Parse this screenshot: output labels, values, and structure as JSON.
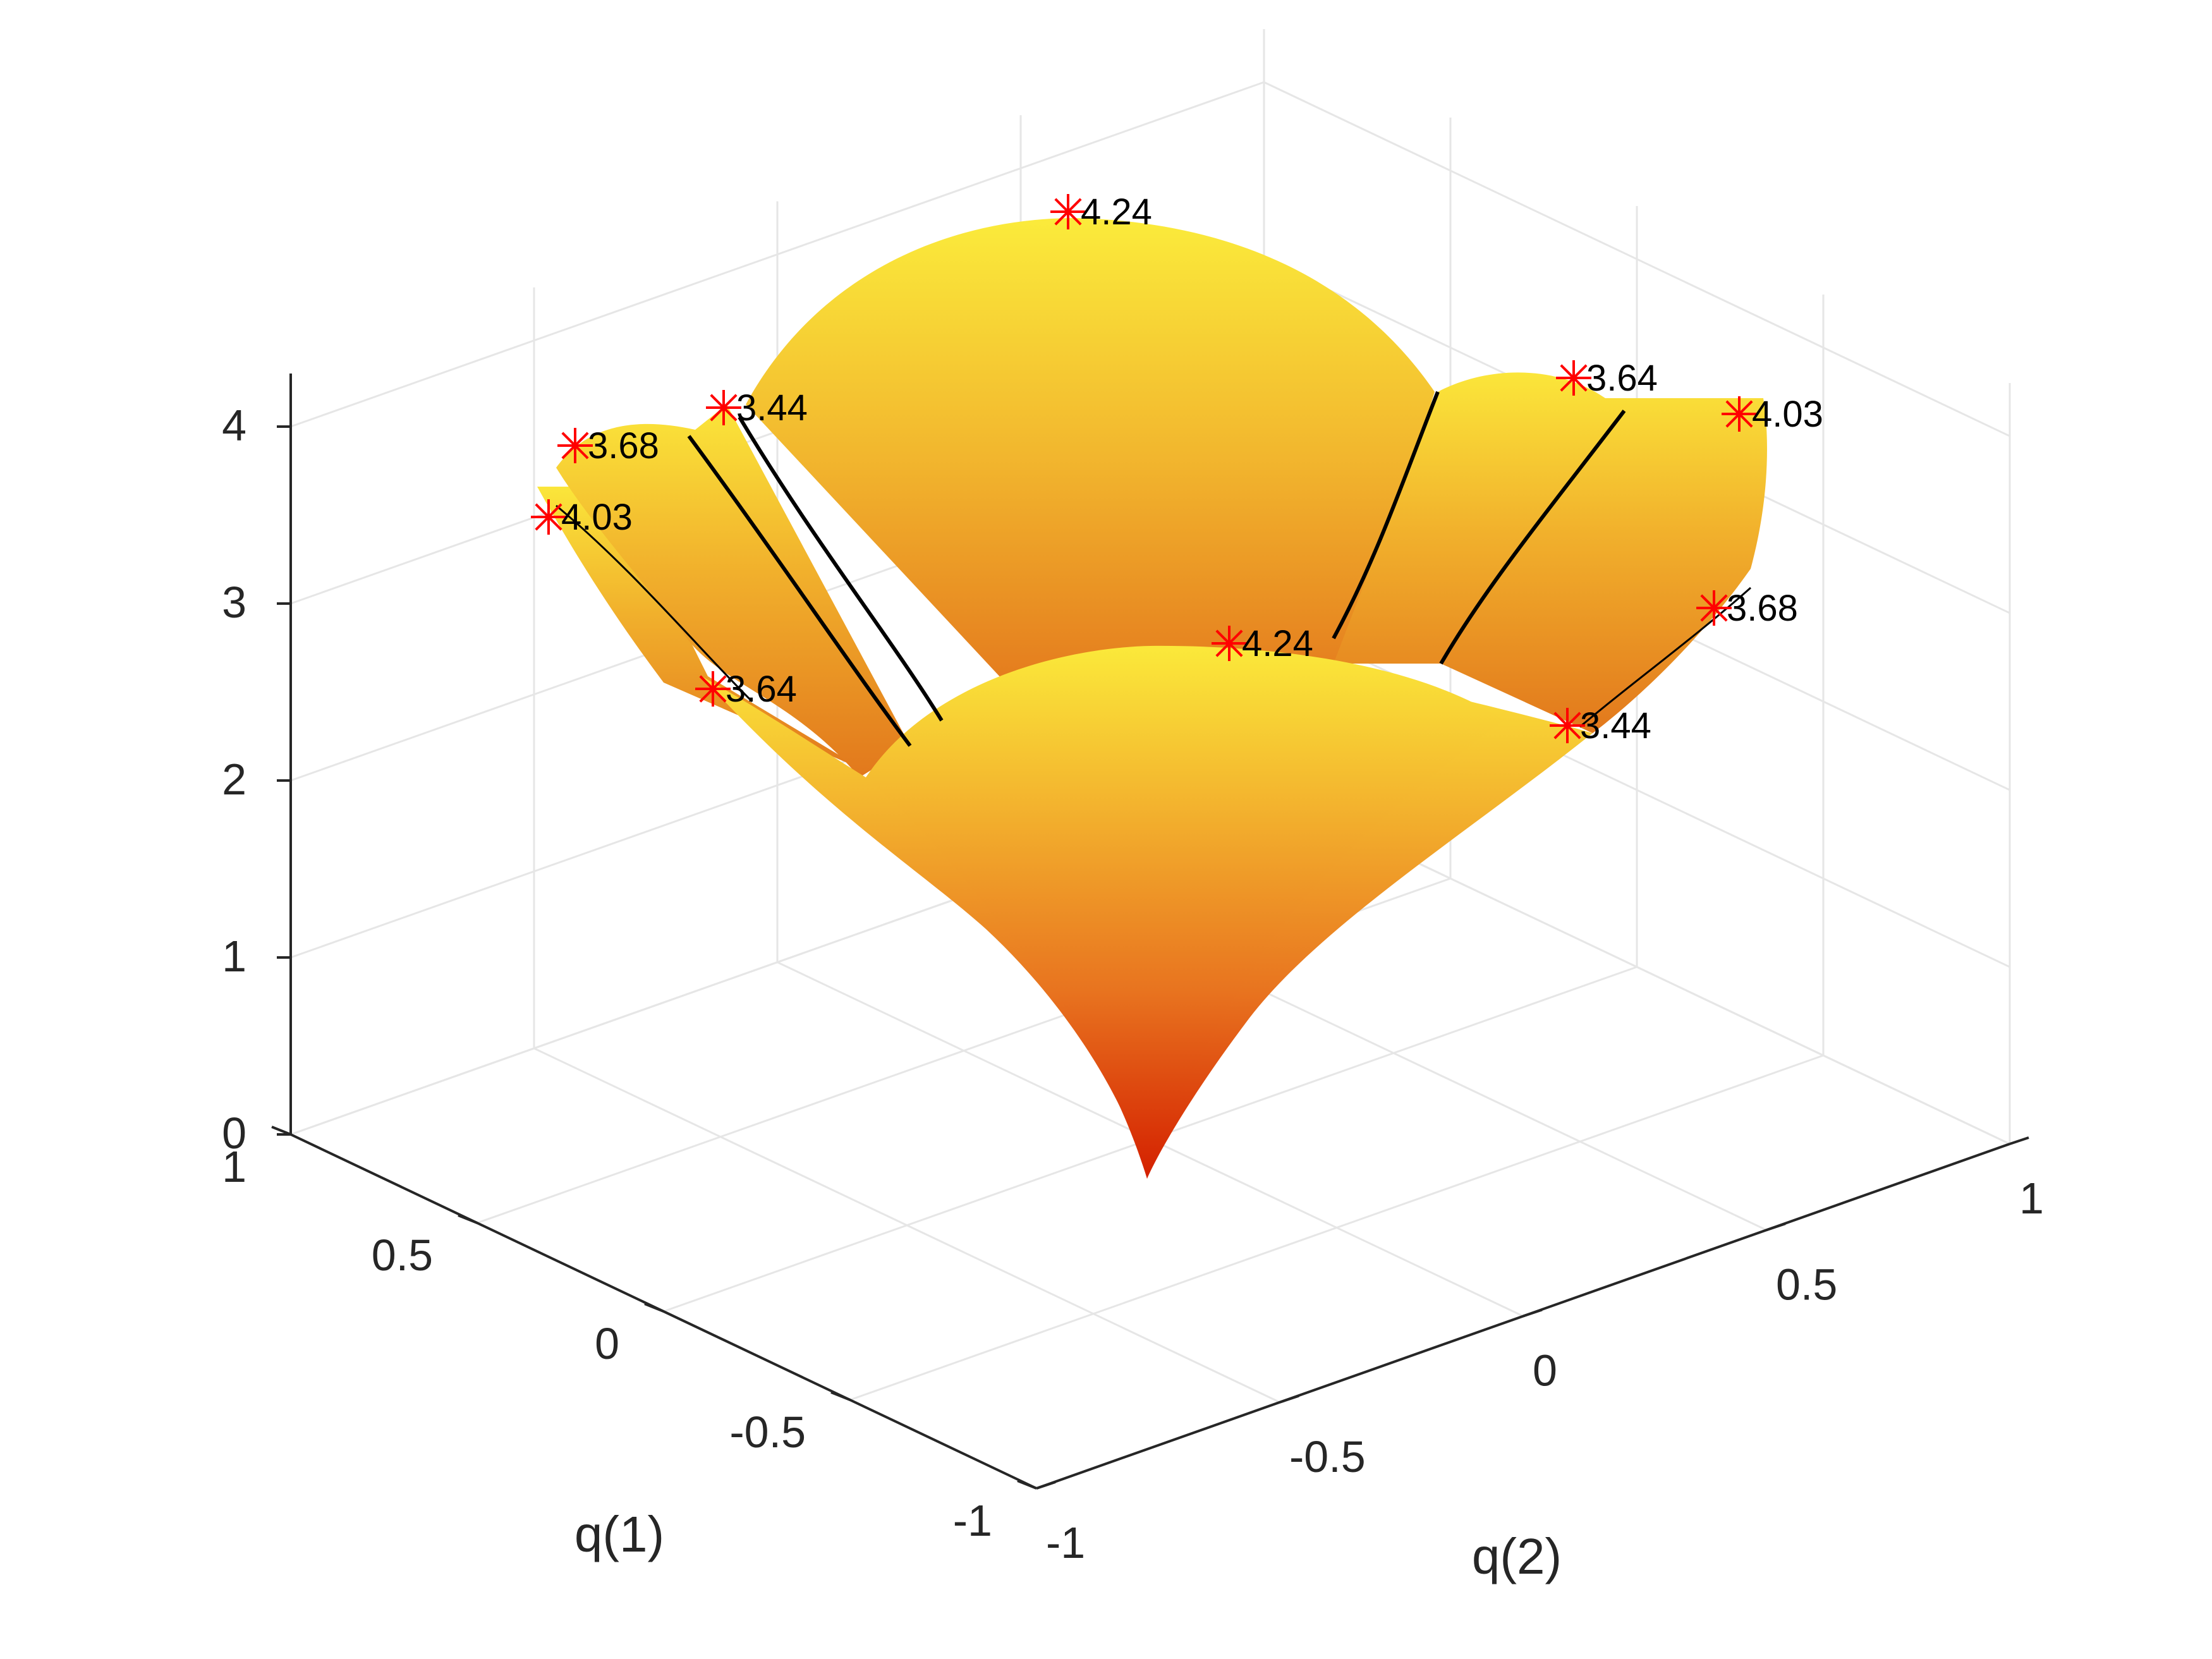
{
  "chart_data": {
    "type": "surface",
    "title": "",
    "xlabel": "q(1)",
    "ylabel": "q(2)",
    "zlabel": "",
    "xlim": [
      -1,
      1
    ],
    "ylim": [
      -1,
      1
    ],
    "zlim": [
      0,
      4.3
    ],
    "x_ticks": [
      "-1",
      "-0.5",
      "0",
      "0.5",
      "1"
    ],
    "y_ticks": [
      "-1",
      "-0.5",
      "0",
      "0.5",
      "1"
    ],
    "z_ticks": [
      "0",
      "1",
      "2",
      "3",
      "4"
    ],
    "grid": true,
    "colormap": [
      "#d42000",
      "#e8731f",
      "#f3b32e",
      "#fbe93a"
    ],
    "colors": {
      "marker": "#ff0000",
      "ridge_line": "#000000",
      "axis": "#262626",
      "grid": "#e6e6e6"
    },
    "points": [
      {
        "label": "4.24",
        "z": 4.24
      },
      {
        "label": "3.44",
        "z": 3.44
      },
      {
        "label": "3.68",
        "z": 3.68
      },
      {
        "label": "4.03",
        "z": 4.03
      },
      {
        "label": "3.64",
        "z": 3.64
      },
      {
        "label": "3.64",
        "z": 3.64
      },
      {
        "label": "4.03",
        "z": 4.03
      },
      {
        "label": "4.24",
        "z": 4.24
      },
      {
        "label": "3.68",
        "z": 3.68
      },
      {
        "label": "3.44",
        "z": 3.44
      }
    ]
  }
}
